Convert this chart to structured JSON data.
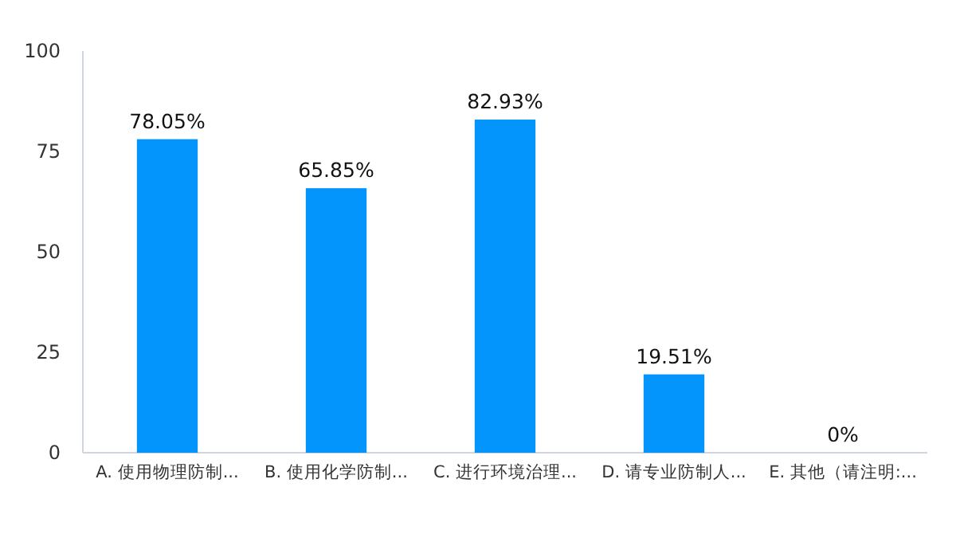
{
  "chart_data": {
    "type": "bar",
    "categories": [
      "A. 使用物理防制...",
      "B. 使用化学防制...",
      "C. 进行环境治理...",
      "D. 请专业防制人...",
      "E. 其他（请注明:..."
    ],
    "values": [
      78.05,
      65.85,
      82.93,
      19.51,
      0
    ],
    "value_labels": [
      "78.05%",
      "65.85%",
      "82.93%",
      "19.51%",
      "0%"
    ],
    "color": "#0395fc",
    "ylim": [
      0,
      100
    ],
    "yticks": [
      0,
      25,
      50,
      75,
      100
    ],
    "grid": false
  }
}
